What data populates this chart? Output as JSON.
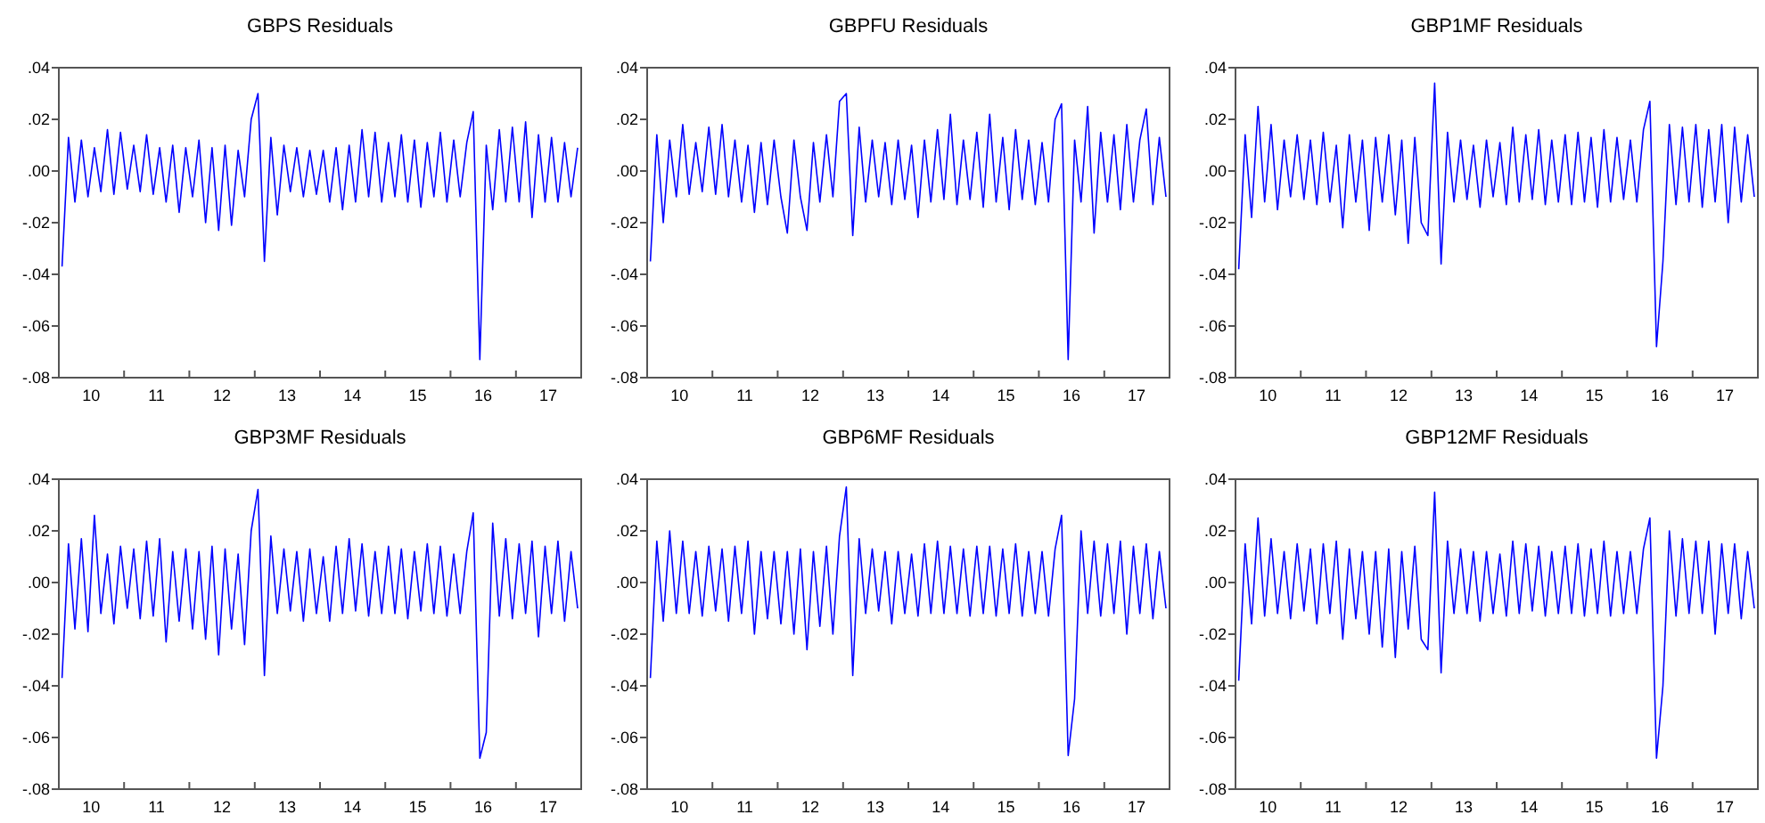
{
  "chart_data": [
    {
      "type": "line",
      "title": "GBPS Residuals",
      "x": [
        "2010-01-19",
        "2010-02-24",
        "2010-04-01",
        "2010-05-07",
        "2010-06-13",
        "2010-07-19",
        "2010-08-24",
        "2010-09-30",
        "2010-11-05",
        "2010-12-12",
        "2011-01-19",
        "2011-02-24",
        "2011-04-01",
        "2011-05-07",
        "2011-06-13",
        "2011-07-19",
        "2011-08-24",
        "2011-09-30",
        "2011-11-05",
        "2011-12-12",
        "2012-01-19",
        "2012-02-24",
        "2012-04-01",
        "2012-05-07",
        "2012-06-13",
        "2012-07-19",
        "2012-08-24",
        "2012-09-30",
        "2012-11-05",
        "2012-12-12",
        "2013-01-19",
        "2013-02-24",
        "2013-04-01",
        "2013-05-07",
        "2013-06-13",
        "2013-07-19",
        "2013-08-24",
        "2013-09-30",
        "2013-11-05",
        "2013-12-12",
        "2014-01-19",
        "2014-02-24",
        "2014-04-01",
        "2014-05-07",
        "2014-06-13",
        "2014-07-19",
        "2014-08-24",
        "2014-09-30",
        "2014-11-05",
        "2014-12-12",
        "2015-01-19",
        "2015-02-24",
        "2015-04-01",
        "2015-05-07",
        "2015-06-13",
        "2015-07-19",
        "2015-08-24",
        "2015-09-30",
        "2015-11-05",
        "2015-12-12",
        "2016-01-19",
        "2016-02-24",
        "2016-04-01",
        "2016-05-07",
        "2016-06-13",
        "2016-07-19",
        "2016-08-24",
        "2016-09-30",
        "2016-11-05",
        "2016-12-12",
        "2017-01-19",
        "2017-02-24",
        "2017-04-01",
        "2017-05-07",
        "2017-06-13",
        "2017-07-19",
        "2017-08-24",
        "2017-09-30",
        "2017-11-05",
        "2017-12-12"
      ],
      "xlim": [
        "2010-01-01",
        "2018-01-01"
      ],
      "xticks": [
        {
          "value": "2010-07-01",
          "label": "10"
        },
        {
          "value": "2011-07-01",
          "label": "11"
        },
        {
          "value": "2012-07-01",
          "label": "12"
        },
        {
          "value": "2013-07-01",
          "label": "13"
        },
        {
          "value": "2014-07-01",
          "label": "14"
        },
        {
          "value": "2015-07-01",
          "label": "15"
        },
        {
          "value": "2016-07-01",
          "label": "16"
        },
        {
          "value": "2017-07-01",
          "label": "17"
        },
        {
          "value": "2011-01-01",
          "label": null
        },
        {
          "value": "2012-01-01",
          "label": null
        },
        {
          "value": "2013-01-01",
          "label": null
        },
        {
          "value": "2014-01-01",
          "label": null
        },
        {
          "value": "2015-01-01",
          "label": null
        },
        {
          "value": "2016-01-01",
          "label": null
        },
        {
          "value": "2017-01-01",
          "label": null
        }
      ],
      "ylim": [
        -0.08,
        0.04
      ],
      "yticks": [
        {
          "value": -0.08,
          "label": "-.08"
        },
        {
          "value": -0.06,
          "label": "-.06"
        },
        {
          "value": -0.04,
          "label": "-.04"
        },
        {
          "value": -0.02,
          "label": "-.02"
        },
        {
          "value": 0,
          "label": ".00"
        },
        {
          "value": 0.02,
          "label": ".02"
        },
        {
          "value": 0.04,
          "label": ".04"
        }
      ],
      "series": [
        {
          "color": "#0000ff",
          "values": [
            -0.037,
            0.013,
            -0.012,
            0.012,
            -0.01,
            0.009,
            -0.008,
            0.016,
            -0.009,
            0.015,
            -0.007,
            0.01,
            -0.008,
            0.014,
            -0.009,
            0.009,
            -0.012,
            0.01,
            -0.016,
            0.009,
            -0.01,
            0.012,
            -0.02,
            0.009,
            -0.023,
            0.01,
            -0.021,
            0.008,
            -0.01,
            0.02,
            0.03,
            -0.035,
            0.013,
            -0.017,
            0.01,
            -0.008,
            0.009,
            -0.01,
            0.008,
            -0.009,
            0.008,
            -0.012,
            0.009,
            -0.015,
            0.01,
            -0.012,
            0.016,
            -0.01,
            0.015,
            -0.012,
            0.011,
            -0.01,
            0.014,
            -0.012,
            0.012,
            -0.014,
            0.011,
            -0.01,
            0.015,
            -0.012,
            0.012,
            -0.01,
            0.011,
            0.023,
            -0.073,
            0.01,
            -0.015,
            0.016,
            -0.012,
            0.017,
            -0.012,
            0.019,
            -0.018,
            0.014,
            -0.012,
            0.013,
            -0.012,
            0.011,
            -0.01,
            0.009
          ]
        }
      ]
    },
    {
      "type": "line",
      "title": "GBPFU Residuals",
      "x": [
        "2010-01-19",
        "2010-02-24",
        "2010-04-01",
        "2010-05-07",
        "2010-06-13",
        "2010-07-19",
        "2010-08-24",
        "2010-09-30",
        "2010-11-05",
        "2010-12-12",
        "2011-01-19",
        "2011-02-24",
        "2011-04-01",
        "2011-05-07",
        "2011-06-13",
        "2011-07-19",
        "2011-08-24",
        "2011-09-30",
        "2011-11-05",
        "2011-12-12",
        "2012-01-19",
        "2012-02-24",
        "2012-04-01",
        "2012-05-07",
        "2012-06-13",
        "2012-07-19",
        "2012-08-24",
        "2012-09-30",
        "2012-11-05",
        "2012-12-12",
        "2013-01-19",
        "2013-02-24",
        "2013-04-01",
        "2013-05-07",
        "2013-06-13",
        "2013-07-19",
        "2013-08-24",
        "2013-09-30",
        "2013-11-05",
        "2013-12-12",
        "2014-01-19",
        "2014-02-24",
        "2014-04-01",
        "2014-05-07",
        "2014-06-13",
        "2014-07-19",
        "2014-08-24",
        "2014-09-30",
        "2014-11-05",
        "2014-12-12",
        "2015-01-19",
        "2015-02-24",
        "2015-04-01",
        "2015-05-07",
        "2015-06-13",
        "2015-07-19",
        "2015-08-24",
        "2015-09-30",
        "2015-11-05",
        "2015-12-12",
        "2016-01-19",
        "2016-02-24",
        "2016-04-01",
        "2016-05-07",
        "2016-06-13",
        "2016-07-19",
        "2016-08-24",
        "2016-09-30",
        "2016-11-05",
        "2016-12-12",
        "2017-01-19",
        "2017-02-24",
        "2017-04-01",
        "2017-05-07",
        "2017-06-13",
        "2017-07-19",
        "2017-08-24",
        "2017-09-30",
        "2017-11-05",
        "2017-12-12"
      ],
      "xlim": [
        "2010-01-01",
        "2018-01-01"
      ],
      "xticks": [
        {
          "value": "2010-07-01",
          "label": "10"
        },
        {
          "value": "2011-07-01",
          "label": "11"
        },
        {
          "value": "2012-07-01",
          "label": "12"
        },
        {
          "value": "2013-07-01",
          "label": "13"
        },
        {
          "value": "2014-07-01",
          "label": "14"
        },
        {
          "value": "2015-07-01",
          "label": "15"
        },
        {
          "value": "2016-07-01",
          "label": "16"
        },
        {
          "value": "2017-07-01",
          "label": "17"
        },
        {
          "value": "2011-01-01",
          "label": null
        },
        {
          "value": "2012-01-01",
          "label": null
        },
        {
          "value": "2013-01-01",
          "label": null
        },
        {
          "value": "2014-01-01",
          "label": null
        },
        {
          "value": "2015-01-01",
          "label": null
        },
        {
          "value": "2016-01-01",
          "label": null
        },
        {
          "value": "2017-01-01",
          "label": null
        }
      ],
      "ylim": [
        -0.08,
        0.04
      ],
      "yticks": [
        {
          "value": -0.08,
          "label": "-.08"
        },
        {
          "value": -0.06,
          "label": "-.06"
        },
        {
          "value": -0.04,
          "label": "-.04"
        },
        {
          "value": -0.02,
          "label": "-.02"
        },
        {
          "value": 0,
          "label": ".00"
        },
        {
          "value": 0.02,
          "label": ".02"
        },
        {
          "value": 0.04,
          "label": ".04"
        }
      ],
      "series": [
        {
          "color": "#0000ff",
          "values": [
            -0.035,
            0.014,
            -0.02,
            0.012,
            -0.01,
            0.018,
            -0.009,
            0.011,
            -0.008,
            0.017,
            -0.009,
            0.018,
            -0.01,
            0.012,
            -0.012,
            0.01,
            -0.016,
            0.011,
            -0.013,
            0.012,
            -0.01,
            -0.024,
            0.012,
            -0.01,
            -0.023,
            0.011,
            -0.012,
            0.014,
            -0.01,
            0.027,
            0.03,
            -0.025,
            0.017,
            -0.012,
            0.012,
            -0.01,
            0.011,
            -0.013,
            0.012,
            -0.011,
            0.01,
            -0.018,
            0.012,
            -0.012,
            0.016,
            -0.011,
            0.022,
            -0.013,
            0.012,
            -0.011,
            0.015,
            -0.014,
            0.022,
            -0.012,
            0.013,
            -0.015,
            0.016,
            -0.011,
            0.012,
            -0.013,
            0.011,
            -0.012,
            0.02,
            0.026,
            -0.073,
            0.012,
            -0.012,
            0.025,
            -0.024,
            0.015,
            -0.012,
            0.014,
            -0.015,
            0.018,
            -0.012,
            0.012,
            0.024,
            -0.013,
            0.013,
            -0.01
          ]
        }
      ]
    },
    {
      "type": "line",
      "title": "GBP1MF Residuals",
      "x": [
        "2010-01-19",
        "2010-02-24",
        "2010-04-01",
        "2010-05-07",
        "2010-06-13",
        "2010-07-19",
        "2010-08-24",
        "2010-09-30",
        "2010-11-05",
        "2010-12-12",
        "2011-01-19",
        "2011-02-24",
        "2011-04-01",
        "2011-05-07",
        "2011-06-13",
        "2011-07-19",
        "2011-08-24",
        "2011-09-30",
        "2011-11-05",
        "2011-12-12",
        "2012-01-19",
        "2012-02-24",
        "2012-04-01",
        "2012-05-07",
        "2012-06-13",
        "2012-07-19",
        "2012-08-24",
        "2012-09-30",
        "2012-11-05",
        "2012-12-12",
        "2013-01-19",
        "2013-02-24",
        "2013-04-01",
        "2013-05-07",
        "2013-06-13",
        "2013-07-19",
        "2013-08-24",
        "2013-09-30",
        "2013-11-05",
        "2013-12-12",
        "2014-01-19",
        "2014-02-24",
        "2014-04-01",
        "2014-05-07",
        "2014-06-13",
        "2014-07-19",
        "2014-08-24",
        "2014-09-30",
        "2014-11-05",
        "2014-12-12",
        "2015-01-19",
        "2015-02-24",
        "2015-04-01",
        "2015-05-07",
        "2015-06-13",
        "2015-07-19",
        "2015-08-24",
        "2015-09-30",
        "2015-11-05",
        "2015-12-12",
        "2016-01-19",
        "2016-02-24",
        "2016-04-01",
        "2016-05-07",
        "2016-06-13",
        "2016-07-19",
        "2016-08-24",
        "2016-09-30",
        "2016-11-05",
        "2016-12-12",
        "2017-01-19",
        "2017-02-24",
        "2017-04-01",
        "2017-05-07",
        "2017-06-13",
        "2017-07-19",
        "2017-08-24",
        "2017-09-30",
        "2017-11-05",
        "2017-12-12"
      ],
      "xlim": [
        "2010-01-01",
        "2018-01-01"
      ],
      "xticks": [
        {
          "value": "2010-07-01",
          "label": "10"
        },
        {
          "value": "2011-07-01",
          "label": "11"
        },
        {
          "value": "2012-07-01",
          "label": "12"
        },
        {
          "value": "2013-07-01",
          "label": "13"
        },
        {
          "value": "2014-07-01",
          "label": "14"
        },
        {
          "value": "2015-07-01",
          "label": "15"
        },
        {
          "value": "2016-07-01",
          "label": "16"
        },
        {
          "value": "2017-07-01",
          "label": "17"
        },
        {
          "value": "2011-01-01",
          "label": null
        },
        {
          "value": "2012-01-01",
          "label": null
        },
        {
          "value": "2013-01-01",
          "label": null
        },
        {
          "value": "2014-01-01",
          "label": null
        },
        {
          "value": "2015-01-01",
          "label": null
        },
        {
          "value": "2016-01-01",
          "label": null
        },
        {
          "value": "2017-01-01",
          "label": null
        }
      ],
      "ylim": [
        -0.08,
        0.04
      ],
      "yticks": [
        {
          "value": -0.08,
          "label": "-.08"
        },
        {
          "value": -0.06,
          "label": "-.06"
        },
        {
          "value": -0.04,
          "label": "-.04"
        },
        {
          "value": -0.02,
          "label": "-.02"
        },
        {
          "value": 0,
          "label": ".00"
        },
        {
          "value": 0.02,
          "label": ".02"
        },
        {
          "value": 0.04,
          "label": ".04"
        }
      ],
      "series": [
        {
          "color": "#0000ff",
          "values": [
            -0.038,
            0.014,
            -0.018,
            0.025,
            -0.012,
            0.018,
            -0.015,
            0.012,
            -0.01,
            0.014,
            -0.011,
            0.012,
            -0.013,
            0.015,
            -0.012,
            0.01,
            -0.022,
            0.014,
            -0.012,
            0.012,
            -0.023,
            0.013,
            -0.012,
            0.014,
            -0.017,
            0.012,
            -0.028,
            0.013,
            -0.02,
            -0.025,
            0.034,
            -0.036,
            0.015,
            -0.012,
            0.012,
            -0.011,
            0.01,
            -0.014,
            0.012,
            -0.01,
            0.011,
            -0.013,
            0.017,
            -0.012,
            0.014,
            -0.011,
            0.016,
            -0.013,
            0.012,
            -0.012,
            0.014,
            -0.013,
            0.015,
            -0.012,
            0.013,
            -0.014,
            0.016,
            -0.012,
            0.013,
            -0.011,
            0.012,
            -0.012,
            0.016,
            0.027,
            -0.068,
            -0.035,
            0.018,
            -0.013,
            0.017,
            -0.012,
            0.018,
            -0.014,
            0.016,
            -0.012,
            0.018,
            -0.02,
            0.017,
            -0.012,
            0.014,
            -0.01
          ]
        }
      ]
    },
    {
      "type": "line",
      "title": "GBP3MF Residuals",
      "x": [
        "2010-01-19",
        "2010-02-24",
        "2010-04-01",
        "2010-05-07",
        "2010-06-13",
        "2010-07-19",
        "2010-08-24",
        "2010-09-30",
        "2010-11-05",
        "2010-12-12",
        "2011-01-19",
        "2011-02-24",
        "2011-04-01",
        "2011-05-07",
        "2011-06-13",
        "2011-07-19",
        "2011-08-24",
        "2011-09-30",
        "2011-11-05",
        "2011-12-12",
        "2012-01-19",
        "2012-02-24",
        "2012-04-01",
        "2012-05-07",
        "2012-06-13",
        "2012-07-19",
        "2012-08-24",
        "2012-09-30",
        "2012-11-05",
        "2012-12-12",
        "2013-01-19",
        "2013-02-24",
        "2013-04-01",
        "2013-05-07",
        "2013-06-13",
        "2013-07-19",
        "2013-08-24",
        "2013-09-30",
        "2013-11-05",
        "2013-12-12",
        "2014-01-19",
        "2014-02-24",
        "2014-04-01",
        "2014-05-07",
        "2014-06-13",
        "2014-07-19",
        "2014-08-24",
        "2014-09-30",
        "2014-11-05",
        "2014-12-12",
        "2015-01-19",
        "2015-02-24",
        "2015-04-01",
        "2015-05-07",
        "2015-06-13",
        "2015-07-19",
        "2015-08-24",
        "2015-09-30",
        "2015-11-05",
        "2015-12-12",
        "2016-01-19",
        "2016-02-24",
        "2016-04-01",
        "2016-05-07",
        "2016-06-13",
        "2016-07-19",
        "2016-08-24",
        "2016-09-30",
        "2016-11-05",
        "2016-12-12",
        "2017-01-19",
        "2017-02-24",
        "2017-04-01",
        "2017-05-07",
        "2017-06-13",
        "2017-07-19",
        "2017-08-24",
        "2017-09-30",
        "2017-11-05",
        "2017-12-12"
      ],
      "xlim": [
        "2010-01-01",
        "2018-01-01"
      ],
      "xticks": [
        {
          "value": "2010-07-01",
          "label": "10"
        },
        {
          "value": "2011-07-01",
          "label": "11"
        },
        {
          "value": "2012-07-01",
          "label": "12"
        },
        {
          "value": "2013-07-01",
          "label": "13"
        },
        {
          "value": "2014-07-01",
          "label": "14"
        },
        {
          "value": "2015-07-01",
          "label": "15"
        },
        {
          "value": "2016-07-01",
          "label": "16"
        },
        {
          "value": "2017-07-01",
          "label": "17"
        },
        {
          "value": "2011-01-01",
          "label": null
        },
        {
          "value": "2012-01-01",
          "label": null
        },
        {
          "value": "2013-01-01",
          "label": null
        },
        {
          "value": "2014-01-01",
          "label": null
        },
        {
          "value": "2015-01-01",
          "label": null
        },
        {
          "value": "2016-01-01",
          "label": null
        },
        {
          "value": "2017-01-01",
          "label": null
        }
      ],
      "ylim": [
        -0.08,
        0.04
      ],
      "yticks": [
        {
          "value": -0.08,
          "label": "-.08"
        },
        {
          "value": -0.06,
          "label": "-.06"
        },
        {
          "value": -0.04,
          "label": "-.04"
        },
        {
          "value": -0.02,
          "label": "-.02"
        },
        {
          "value": 0,
          "label": ".00"
        },
        {
          "value": 0.02,
          "label": ".02"
        },
        {
          "value": 0.04,
          "label": ".04"
        }
      ],
      "series": [
        {
          "color": "#0000ff",
          "values": [
            -0.037,
            0.015,
            -0.018,
            0.017,
            -0.019,
            0.026,
            -0.012,
            0.011,
            -0.016,
            0.014,
            -0.01,
            0.013,
            -0.014,
            0.016,
            -0.013,
            0.017,
            -0.023,
            0.012,
            -0.015,
            0.013,
            -0.018,
            0.012,
            -0.022,
            0.014,
            -0.028,
            0.013,
            -0.018,
            0.011,
            -0.024,
            0.02,
            0.036,
            -0.036,
            0.018,
            -0.012,
            0.013,
            -0.011,
            0.012,
            -0.015,
            0.013,
            -0.012,
            0.01,
            -0.015,
            0.014,
            -0.012,
            0.017,
            -0.011,
            0.015,
            -0.013,
            0.012,
            -0.012,
            0.014,
            -0.012,
            0.013,
            -0.014,
            0.012,
            -0.011,
            0.015,
            -0.012,
            0.014,
            -0.013,
            0.011,
            -0.012,
            0.012,
            0.027,
            -0.068,
            -0.058,
            0.023,
            -0.013,
            0.017,
            -0.014,
            0.015,
            -0.012,
            0.016,
            -0.021,
            0.014,
            -0.012,
            0.016,
            -0.015,
            0.012,
            -0.01
          ]
        }
      ]
    },
    {
      "type": "line",
      "title": "GBP6MF Residuals",
      "x": [
        "2010-01-19",
        "2010-02-24",
        "2010-04-01",
        "2010-05-07",
        "2010-06-13",
        "2010-07-19",
        "2010-08-24",
        "2010-09-30",
        "2010-11-05",
        "2010-12-12",
        "2011-01-19",
        "2011-02-24",
        "2011-04-01",
        "2011-05-07",
        "2011-06-13",
        "2011-07-19",
        "2011-08-24",
        "2011-09-30",
        "2011-11-05",
        "2011-12-12",
        "2012-01-19",
        "2012-02-24",
        "2012-04-01",
        "2012-05-07",
        "2012-06-13",
        "2012-07-19",
        "2012-08-24",
        "2012-09-30",
        "2012-11-05",
        "2012-12-12",
        "2013-01-19",
        "2013-02-24",
        "2013-04-01",
        "2013-05-07",
        "2013-06-13",
        "2013-07-19",
        "2013-08-24",
        "2013-09-30",
        "2013-11-05",
        "2013-12-12",
        "2014-01-19",
        "2014-02-24",
        "2014-04-01",
        "2014-05-07",
        "2014-06-13",
        "2014-07-19",
        "2014-08-24",
        "2014-09-30",
        "2014-11-05",
        "2014-12-12",
        "2015-01-19",
        "2015-02-24",
        "2015-04-01",
        "2015-05-07",
        "2015-06-13",
        "2015-07-19",
        "2015-08-24",
        "2015-09-30",
        "2015-11-05",
        "2015-12-12",
        "2016-01-19",
        "2016-02-24",
        "2016-04-01",
        "2016-05-07",
        "2016-06-13",
        "2016-07-19",
        "2016-08-24",
        "2016-09-30",
        "2016-11-05",
        "2016-12-12",
        "2017-01-19",
        "2017-02-24",
        "2017-04-01",
        "2017-05-07",
        "2017-06-13",
        "2017-07-19",
        "2017-08-24",
        "2017-09-30",
        "2017-11-05",
        "2017-12-12"
      ],
      "xlim": [
        "2010-01-01",
        "2018-01-01"
      ],
      "xticks": [
        {
          "value": "2010-07-01",
          "label": "10"
        },
        {
          "value": "2011-07-01",
          "label": "11"
        },
        {
          "value": "2012-07-01",
          "label": "12"
        },
        {
          "value": "2013-07-01",
          "label": "13"
        },
        {
          "value": "2014-07-01",
          "label": "14"
        },
        {
          "value": "2015-07-01",
          "label": "15"
        },
        {
          "value": "2016-07-01",
          "label": "16"
        },
        {
          "value": "2017-07-01",
          "label": "17"
        },
        {
          "value": "2011-01-01",
          "label": null
        },
        {
          "value": "2012-01-01",
          "label": null
        },
        {
          "value": "2013-01-01",
          "label": null
        },
        {
          "value": "2014-01-01",
          "label": null
        },
        {
          "value": "2015-01-01",
          "label": null
        },
        {
          "value": "2016-01-01",
          "label": null
        },
        {
          "value": "2017-01-01",
          "label": null
        }
      ],
      "ylim": [
        -0.08,
        0.04
      ],
      "yticks": [
        {
          "value": -0.08,
          "label": "-.08"
        },
        {
          "value": -0.06,
          "label": "-.06"
        },
        {
          "value": -0.04,
          "label": "-.04"
        },
        {
          "value": -0.02,
          "label": "-.02"
        },
        {
          "value": 0,
          "label": ".00"
        },
        {
          "value": 0.02,
          "label": ".02"
        },
        {
          "value": 0.04,
          "label": ".04"
        }
      ],
      "series": [
        {
          "color": "#0000ff",
          "values": [
            -0.037,
            0.016,
            -0.015,
            0.02,
            -0.012,
            0.016,
            -0.012,
            0.012,
            -0.013,
            0.014,
            -0.011,
            0.013,
            -0.015,
            0.014,
            -0.012,
            0.016,
            -0.02,
            0.012,
            -0.014,
            0.012,
            -0.016,
            0.012,
            -0.02,
            0.013,
            -0.026,
            0.012,
            -0.017,
            0.014,
            -0.02,
            0.018,
            0.037,
            -0.036,
            0.017,
            -0.012,
            0.013,
            -0.011,
            0.012,
            -0.016,
            0.012,
            -0.012,
            0.011,
            -0.013,
            0.015,
            -0.012,
            0.016,
            -0.012,
            0.014,
            -0.012,
            0.013,
            -0.013,
            0.014,
            -0.012,
            0.014,
            -0.013,
            0.013,
            -0.012,
            0.015,
            -0.013,
            0.012,
            -0.012,
            0.012,
            -0.013,
            0.013,
            0.026,
            -0.067,
            -0.045,
            0.02,
            -0.012,
            0.016,
            -0.013,
            0.015,
            -0.012,
            0.016,
            -0.02,
            0.014,
            -0.012,
            0.015,
            -0.014,
            0.012,
            -0.01
          ]
        }
      ]
    },
    {
      "type": "line",
      "title": "GBP12MF Residuals",
      "x": [
        "2010-01-19",
        "2010-02-24",
        "2010-04-01",
        "2010-05-07",
        "2010-06-13",
        "2010-07-19",
        "2010-08-24",
        "2010-09-30",
        "2010-11-05",
        "2010-12-12",
        "2011-01-19",
        "2011-02-24",
        "2011-04-01",
        "2011-05-07",
        "2011-06-13",
        "2011-07-19",
        "2011-08-24",
        "2011-09-30",
        "2011-11-05",
        "2011-12-12",
        "2012-01-19",
        "2012-02-24",
        "2012-04-01",
        "2012-05-07",
        "2012-06-13",
        "2012-07-19",
        "2012-08-24",
        "2012-09-30",
        "2012-11-05",
        "2012-12-12",
        "2013-01-19",
        "2013-02-24",
        "2013-04-01",
        "2013-05-07",
        "2013-06-13",
        "2013-07-19",
        "2013-08-24",
        "2013-09-30",
        "2013-11-05",
        "2013-12-12",
        "2014-01-19",
        "2014-02-24",
        "2014-04-01",
        "2014-05-07",
        "2014-06-13",
        "2014-07-19",
        "2014-08-24",
        "2014-09-30",
        "2014-11-05",
        "2014-12-12",
        "2015-01-19",
        "2015-02-24",
        "2015-04-01",
        "2015-05-07",
        "2015-06-13",
        "2015-07-19",
        "2015-08-24",
        "2015-09-30",
        "2015-11-05",
        "2015-12-12",
        "2016-01-19",
        "2016-02-24",
        "2016-04-01",
        "2016-05-07",
        "2016-06-13",
        "2016-07-19",
        "2016-08-24",
        "2016-09-30",
        "2016-11-05",
        "2016-12-12",
        "2017-01-19",
        "2017-02-24",
        "2017-04-01",
        "2017-05-07",
        "2017-06-13",
        "2017-07-19",
        "2017-08-24",
        "2017-09-30",
        "2017-11-05",
        "2017-12-12"
      ],
      "xlim": [
        "2010-01-01",
        "2018-01-01"
      ],
      "xticks": [
        {
          "value": "2010-07-01",
          "label": "10"
        },
        {
          "value": "2011-07-01",
          "label": "11"
        },
        {
          "value": "2012-07-01",
          "label": "12"
        },
        {
          "value": "2013-07-01",
          "label": "13"
        },
        {
          "value": "2014-07-01",
          "label": "14"
        },
        {
          "value": "2015-07-01",
          "label": "15"
        },
        {
          "value": "2016-07-01",
          "label": "16"
        },
        {
          "value": "2017-07-01",
          "label": "17"
        },
        {
          "value": "2011-01-01",
          "label": null
        },
        {
          "value": "2012-01-01",
          "label": null
        },
        {
          "value": "2013-01-01",
          "label": null
        },
        {
          "value": "2014-01-01",
          "label": null
        },
        {
          "value": "2015-01-01",
          "label": null
        },
        {
          "value": "2016-01-01",
          "label": null
        },
        {
          "value": "2017-01-01",
          "label": null
        }
      ],
      "ylim": [
        -0.08,
        0.04
      ],
      "yticks": [
        {
          "value": -0.08,
          "label": "-.08"
        },
        {
          "value": -0.06,
          "label": "-.06"
        },
        {
          "value": -0.04,
          "label": "-.04"
        },
        {
          "value": -0.02,
          "label": "-.02"
        },
        {
          "value": 0,
          "label": ".00"
        },
        {
          "value": 0.02,
          "label": ".02"
        },
        {
          "value": 0.04,
          "label": ".04"
        }
      ],
      "series": [
        {
          "color": "#0000ff",
          "values": [
            -0.038,
            0.015,
            -0.016,
            0.025,
            -0.013,
            0.017,
            -0.012,
            0.012,
            -0.014,
            0.015,
            -0.011,
            0.013,
            -0.016,
            0.015,
            -0.012,
            0.016,
            -0.022,
            0.013,
            -0.014,
            0.012,
            -0.02,
            0.012,
            -0.025,
            0.013,
            -0.029,
            0.012,
            -0.018,
            0.014,
            -0.022,
            -0.026,
            0.035,
            -0.035,
            0.016,
            -0.012,
            0.013,
            -0.012,
            0.012,
            -0.015,
            0.012,
            -0.012,
            0.011,
            -0.013,
            0.016,
            -0.012,
            0.015,
            -0.011,
            0.014,
            -0.013,
            0.012,
            -0.012,
            0.014,
            -0.012,
            0.015,
            -0.013,
            0.013,
            -0.012,
            0.016,
            -0.013,
            0.012,
            -0.012,
            0.012,
            -0.012,
            0.013,
            0.025,
            -0.068,
            -0.04,
            0.02,
            -0.013,
            0.017,
            -0.012,
            0.016,
            -0.012,
            0.016,
            -0.02,
            0.015,
            -0.012,
            0.015,
            -0.014,
            0.012,
            -0.01
          ]
        }
      ]
    }
  ]
}
